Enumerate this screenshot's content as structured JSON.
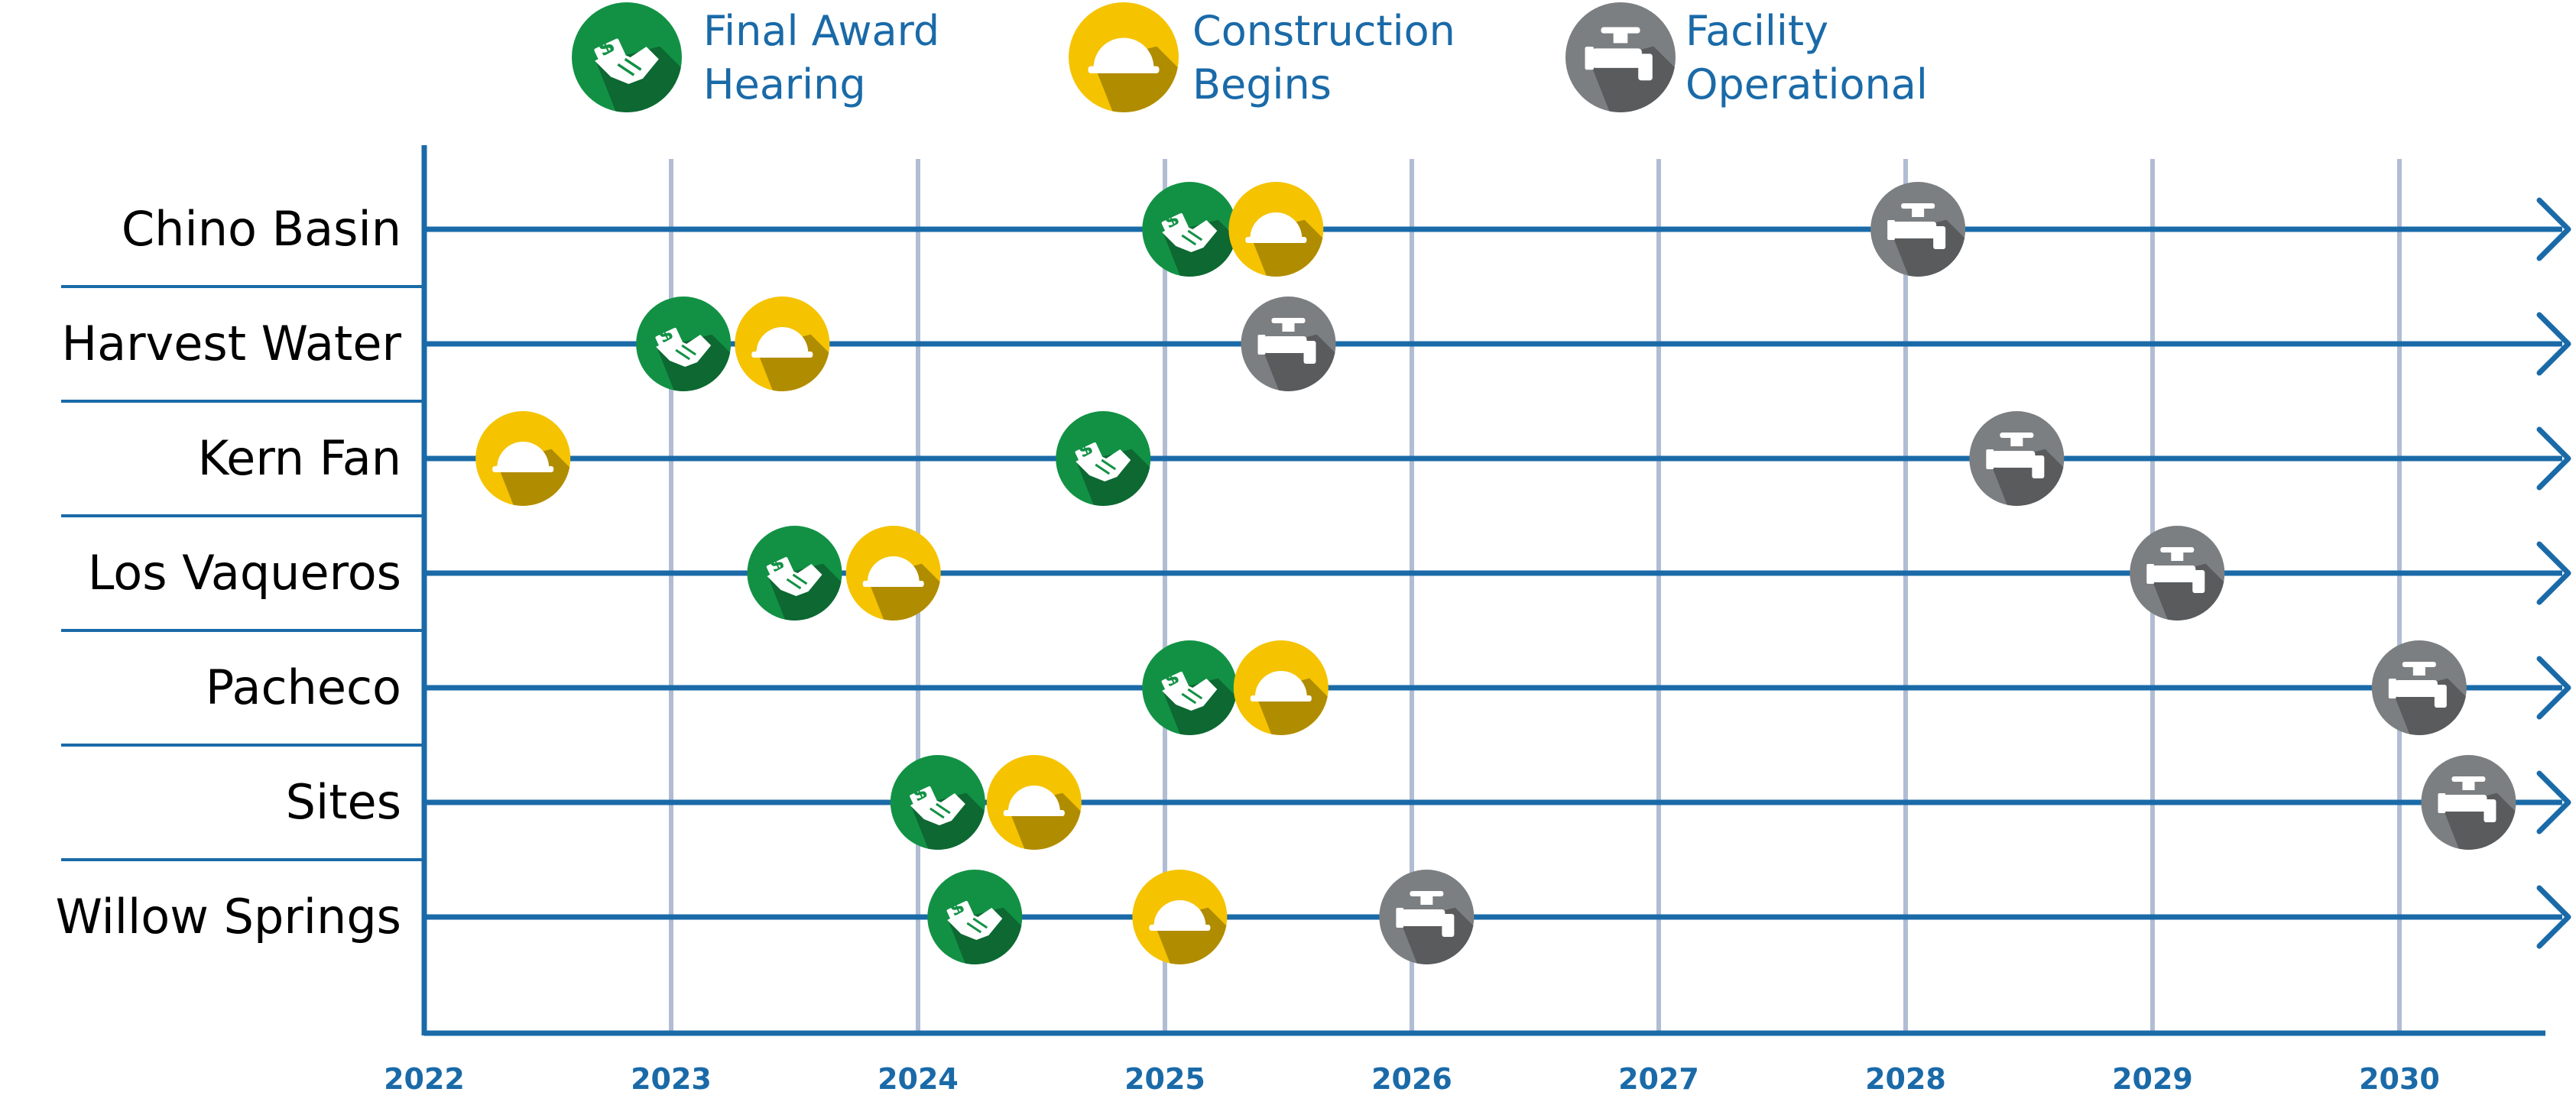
{
  "legend": [
    {
      "key": "final_award",
      "line1": "Final Award",
      "line2": "Hearing",
      "icon": "handshake-money-icon",
      "color": "#129145"
    },
    {
      "key": "construction",
      "line1": "Construction",
      "line2": "Begins",
      "icon": "hard-hat-icon",
      "color": "#f5c300"
    },
    {
      "key": "operational",
      "line1": "Facility",
      "line2": "Operational",
      "icon": "water-valve-icon",
      "color": "#7b7f81"
    }
  ],
  "chart_data": {
    "type": "timeline",
    "title": "",
    "xlabel": "",
    "ylabel": "",
    "x_ticks": [
      "2022",
      "2023",
      "2024",
      "2025",
      "2026",
      "2027",
      "2028",
      "2029",
      "2030"
    ],
    "xlim": [
      2022,
      2030.6
    ],
    "grid": "vertical",
    "legend_position": "top",
    "projects": [
      {
        "name": "Chino Basin",
        "final_award": 2025.1,
        "construction": 2025.45,
        "operational": 2028.05
      },
      {
        "name": "Harvest Water",
        "final_award": 2023.05,
        "construction": 2023.45,
        "operational": 2025.5
      },
      {
        "name": "Kern Fan",
        "final_award": 2024.75,
        "construction": 2022.4,
        "operational": 2028.45
      },
      {
        "name": "Los Vaqueros",
        "final_award": 2023.5,
        "construction": 2023.9,
        "operational": 2029.1
      },
      {
        "name": "Pacheco",
        "final_award": 2025.1,
        "construction": 2025.47,
        "operational": 2030.08
      },
      {
        "name": "Sites",
        "final_award": 2024.08,
        "construction": 2024.47,
        "operational": 2030.28
      },
      {
        "name": "Willow Springs",
        "final_award": 2024.23,
        "construction": 2025.06,
        "operational": 2026.06
      }
    ]
  }
}
